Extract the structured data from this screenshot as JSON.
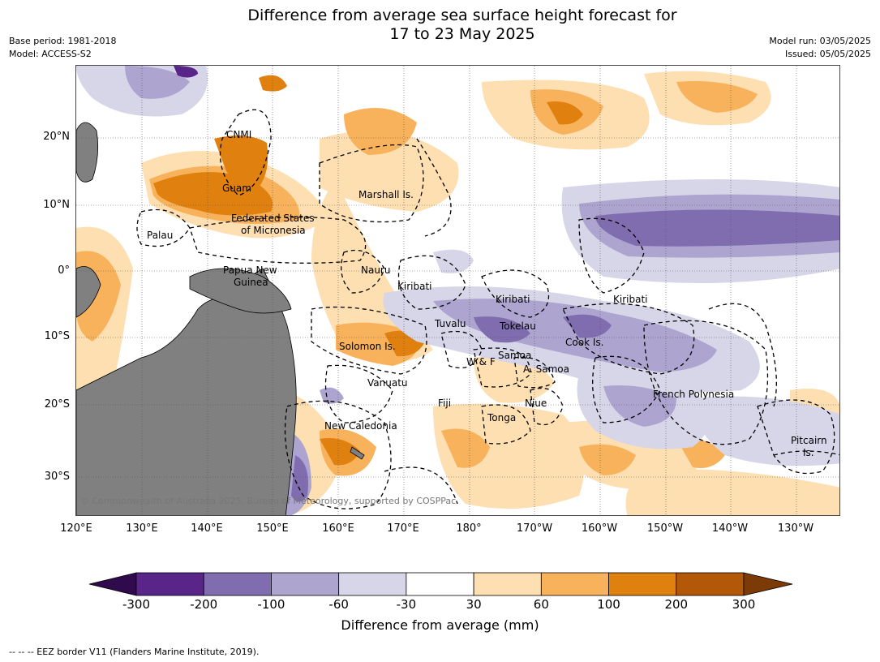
{
  "title_line1": "Difference from average sea surface height forecast for",
  "title_line2": "17 to 23 May 2025",
  "meta_left": [
    "Base period: 1981-2018",
    "Model: ACCESS-S2"
  ],
  "meta_right": [
    "Model run: 03/05/2025",
    "Issued: 05/05/2025"
  ],
  "lat_labels": [
    "20°N",
    "10°N",
    "0°",
    "10°S",
    "20°S",
    "30°S"
  ],
  "lon_labels": [
    "120°E",
    "130°E",
    "140°E",
    "150°E",
    "160°E",
    "170°E",
    "180°",
    "170°W",
    "160°W",
    "150°W",
    "140°W",
    "130°W"
  ],
  "region_labels": {
    "cnmi": "CNMI",
    "guam": "Guam",
    "marshall": "Marshall Is.",
    "fsm1": "Federated States",
    "fsm2": "of Micronesia",
    "palau": "Palau",
    "png1": "Papua New",
    "png2": "Guinea",
    "nauru": "Nauru",
    "kiribati_w": "Kiribati",
    "kiribati_c": "Kiribati",
    "kiribati_e": "Kiribati",
    "tuvalu": "Tuvalu",
    "tokelau": "Tokelau",
    "cook": "Cook Is.",
    "solomon": "Solomon Is.",
    "wf": "W & F",
    "samoa": "Samoa",
    "asamoa": "A. Samoa",
    "vanuatu": "Vanuatu",
    "fiji": "Fiji",
    "niue": "Niue",
    "tonga": "Tonga",
    "frpoly": "French Polynesia",
    "newcal": "New Caledonia",
    "pitcairn1": "Pitcairn",
    "pitcairn2": "Is."
  },
  "copyright": "© Commonwealth of Australia 2025, Bureau of Meteorology, supported by COSPPac",
  "colorbar": {
    "ticks": [
      "-300",
      "-200",
      "-100",
      "-60",
      "-30",
      "30",
      "60",
      "100",
      "200",
      "300"
    ],
    "colors": [
      "#5a2588",
      "#7f6daf",
      "#ada5cf",
      "#d7d6e9",
      "#ffffff",
      "#fddfb2",
      "#f8b25c",
      "#e0800f",
      "#b35808"
    ],
    "under_color": "#2f0a4d",
    "over_color": "#7c3a06",
    "label": "Difference from average (mm)"
  },
  "footnote": "--  --  -- EEZ border V11 (Flanders Marine Institute, 2019)."
}
